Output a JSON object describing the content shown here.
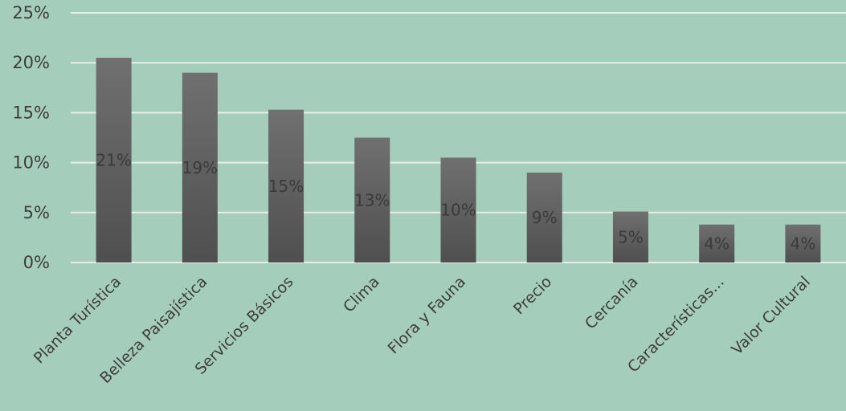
{
  "chart_data": {
    "type": "bar",
    "categories": [
      "Planta Turística",
      "Belleza Paisajística",
      "Servicios Básicos",
      "Clima",
      "Flora y Fauna",
      "Precio",
      "Cercanía",
      "Características...",
      "Valor Cultural"
    ],
    "values": [
      20.5,
      19.0,
      15.3,
      12.5,
      10.5,
      9.0,
      5.1,
      3.8,
      3.8
    ],
    "data_labels": [
      "21%",
      "19%",
      "15%",
      "13%",
      "10%",
      "9%",
      "5%",
      "4%",
      "4%"
    ],
    "y_ticks": [
      "0%",
      "5%",
      "10%",
      "15%",
      "20%",
      "25%"
    ],
    "ylim": [
      0,
      25
    ],
    "grid": true,
    "title": "",
    "xlabel": "",
    "ylabel": "",
    "colors": {
      "background": "#a5cdbb",
      "bar_top": "#707070",
      "bar_bottom": "#4f4f4f",
      "gridline": "#e6efe9",
      "text": "#3d3d3d"
    }
  }
}
